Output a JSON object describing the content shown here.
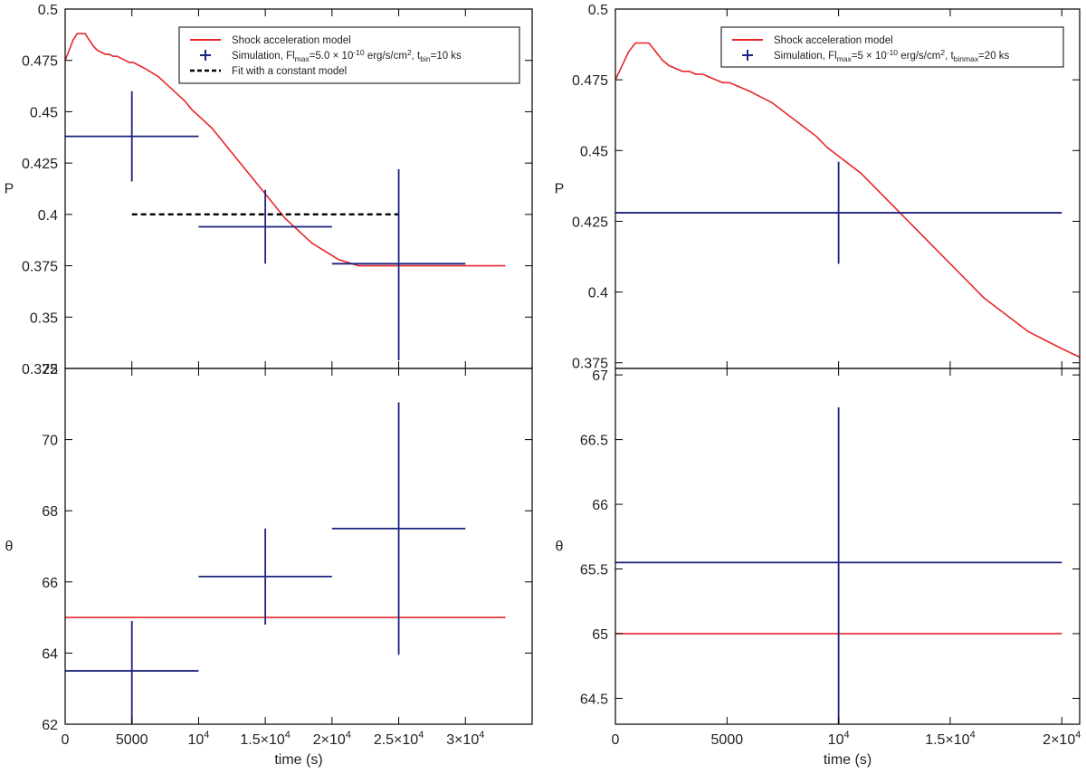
{
  "chart_data": [
    {
      "panel": "left-top",
      "type": "line",
      "xlabel": "",
      "ylabel": "P",
      "xlim": [
        0,
        35000
      ],
      "ylim": [
        0.325,
        0.5
      ],
      "x_ticks": [
        {
          "v": 0,
          "b": "0"
        },
        {
          "v": 5000,
          "b": "5000"
        },
        {
          "v": 10000,
          "b": "10",
          "e": "4"
        },
        {
          "v": 15000,
          "b": "1.5×10",
          "e": "4"
        },
        {
          "v": 20000,
          "b": "2×10",
          "e": "4"
        },
        {
          "v": 25000,
          "b": "2.5×10",
          "e": "4"
        },
        {
          "v": 30000,
          "b": "3×10",
          "e": "4"
        }
      ],
      "y_ticks": [
        {
          "v": 0.325,
          "b": "0.325"
        },
        {
          "v": 0.35,
          "b": "0.35"
        },
        {
          "v": 0.375,
          "b": "0.375"
        },
        {
          "v": 0.4,
          "b": "0.4"
        },
        {
          "v": 0.425,
          "b": "0.425"
        },
        {
          "v": 0.45,
          "b": "0.45"
        },
        {
          "v": 0.475,
          "b": "0.475"
        },
        {
          "v": 0.5,
          "b": "0.5"
        }
      ],
      "series": [
        {
          "name": "Shock acceleration model",
          "kind": "line",
          "color": "#e8262a",
          "x": [
            0,
            300,
            600,
            900,
            1200,
            1500,
            1800,
            2100,
            2400,
            2700,
            3000,
            3300,
            3600,
            3900,
            4200,
            4500,
            4800,
            5100,
            5400,
            5700,
            6000,
            6500,
            7000,
            7500,
            8000,
            8500,
            9000,
            9500,
            10000,
            10500,
            11000,
            11500,
            12000,
            12500,
            13000,
            13500,
            14000,
            14500,
            15000,
            15500,
            16000,
            16500,
            17000,
            17500,
            18000,
            18500,
            19000,
            19500,
            20000,
            20500,
            21000,
            21500,
            22000,
            22500,
            23000,
            23500,
            24000,
            25000,
            27000,
            30000,
            33000
          ],
          "y": [
            0.475,
            0.48,
            0.485,
            0.488,
            0.488,
            0.488,
            0.485,
            0.482,
            0.48,
            0.479,
            0.478,
            0.478,
            0.477,
            0.477,
            0.476,
            0.475,
            0.474,
            0.474,
            0.473,
            0.472,
            0.471,
            0.469,
            0.467,
            0.464,
            0.461,
            0.458,
            0.455,
            0.451,
            0.448,
            0.445,
            0.442,
            0.438,
            0.434,
            0.43,
            0.426,
            0.422,
            0.418,
            0.414,
            0.41,
            0.406,
            0.402,
            0.398,
            0.395,
            0.392,
            0.389,
            0.386,
            0.384,
            0.382,
            0.38,
            0.378,
            0.377,
            0.376,
            0.375,
            0.375,
            0.375,
            0.375,
            0.375,
            0.375,
            0.375,
            0.375,
            0.375
          ]
        },
        {
          "name": "Fit with a constant model",
          "kind": "dashed",
          "color": "#000000",
          "x": [
            5000,
            25000
          ],
          "y": [
            0.4,
            0.4
          ]
        },
        {
          "name": "Simulation",
          "kind": "errorbar",
          "color": "#1a237e",
          "points": [
            {
              "x": 5000,
              "xerr": 5000,
              "y": 0.438,
              "ylo": 0.416,
              "yhi": 0.46
            },
            {
              "x": 15000,
              "xerr": 5000,
              "y": 0.394,
              "ylo": 0.376,
              "yhi": 0.412
            },
            {
              "x": 25000,
              "xerr": 5000,
              "y": 0.376,
              "ylo": 0.329,
              "yhi": 0.422
            }
          ]
        }
      ],
      "legend": {
        "placement": "top-right",
        "entries": [
          {
            "kind": "line",
            "color": "#e8262a",
            "parts": [
              {
                "t": "Shock acceleration model"
              }
            ]
          },
          {
            "kind": "cross",
            "color": "#1a237e",
            "parts": [
              {
                "t": "Simulation, Fl"
              },
              {
                "t": "max",
                "s": "sub"
              },
              {
                "t": "=5.0 × 10"
              },
              {
                "t": "-10",
                "s": "sup"
              },
              {
                "t": " erg/s/cm"
              },
              {
                "t": "2",
                "s": "sup"
              },
              {
                "t": ", t"
              },
              {
                "t": "bin",
                "s": "sub"
              },
              {
                "t": "=10 ks"
              }
            ]
          },
          {
            "kind": "dashed",
            "color": "#000000",
            "parts": [
              {
                "t": "Fit with a constant model"
              }
            ]
          }
        ]
      }
    },
    {
      "panel": "left-bottom",
      "type": "line",
      "xlabel": "time (s)",
      "ylabel": "θ",
      "xlim": [
        0,
        35000
      ],
      "ylim": [
        62,
        72
      ],
      "x_ticks": [
        {
          "v": 0,
          "b": "0"
        },
        {
          "v": 5000,
          "b": "5000"
        },
        {
          "v": 10000,
          "b": "10",
          "e": "4"
        },
        {
          "v": 15000,
          "b": "1.5×10",
          "e": "4"
        },
        {
          "v": 20000,
          "b": "2×10",
          "e": "4"
        },
        {
          "v": 25000,
          "b": "2.5×10",
          "e": "4"
        },
        {
          "v": 30000,
          "b": "3×10",
          "e": "4"
        }
      ],
      "y_ticks": [
        {
          "v": 62,
          "b": "62"
        },
        {
          "v": 64,
          "b": "64"
        },
        {
          "v": 66,
          "b": "66"
        },
        {
          "v": 68,
          "b": "68"
        },
        {
          "v": 70,
          "b": "70"
        },
        {
          "v": 72,
          "b": "72"
        }
      ],
      "series": [
        {
          "name": "Shock acceleration model",
          "kind": "line",
          "color": "#e8262a",
          "x": [
            0,
            33000
          ],
          "y": [
            65,
            65
          ]
        },
        {
          "name": "Simulation",
          "kind": "errorbar",
          "color": "#1a237e",
          "points": [
            {
              "x": 5000,
              "xerr": 5000,
              "y": 63.5,
              "ylo": 62.0,
              "yhi": 64.9
            },
            {
              "x": 15000,
              "xerr": 5000,
              "y": 66.15,
              "ylo": 64.8,
              "yhi": 67.5
            },
            {
              "x": 25000,
              "xerr": 5000,
              "y": 67.5,
              "ylo": 63.95,
              "yhi": 71.05
            }
          ]
        }
      ]
    },
    {
      "panel": "right-top",
      "type": "line",
      "xlabel": "",
      "ylabel": "P",
      "xlim": [
        0,
        20800
      ],
      "ylim": [
        0.373,
        0.5
      ],
      "x_ticks": [
        {
          "v": 0,
          "b": "0"
        },
        {
          "v": 5000,
          "b": "5000"
        },
        {
          "v": 10000,
          "b": "10",
          "e": "4"
        },
        {
          "v": 15000,
          "b": "1.5×10",
          "e": "4"
        },
        {
          "v": 20000,
          "b": "2×10",
          "e": "4"
        }
      ],
      "y_ticks": [
        {
          "v": 0.375,
          "b": "0.375"
        },
        {
          "v": 0.4,
          "b": "0.4"
        },
        {
          "v": 0.425,
          "b": "0.425"
        },
        {
          "v": 0.45,
          "b": "0.45"
        },
        {
          "v": 0.475,
          "b": "0.475"
        },
        {
          "v": 0.5,
          "b": "0.5"
        }
      ],
      "series": [
        {
          "name": "Shock acceleration model",
          "kind": "line",
          "color": "#e8262a",
          "x": [
            0,
            300,
            600,
            900,
            1200,
            1500,
            1800,
            2100,
            2400,
            2700,
            3000,
            3300,
            3600,
            3900,
            4200,
            4500,
            4800,
            5100,
            5400,
            5700,
            6000,
            6500,
            7000,
            7500,
            8000,
            8500,
            9000,
            9500,
            10000,
            10500,
            11000,
            11500,
            12000,
            12500,
            13000,
            13500,
            14000,
            14500,
            15000,
            15500,
            16000,
            16500,
            17000,
            17500,
            18000,
            18500,
            19000,
            19500,
            20000,
            20800
          ],
          "y": [
            0.475,
            0.48,
            0.485,
            0.488,
            0.488,
            0.488,
            0.485,
            0.482,
            0.48,
            0.479,
            0.478,
            0.478,
            0.477,
            0.477,
            0.476,
            0.475,
            0.474,
            0.474,
            0.473,
            0.472,
            0.471,
            0.469,
            0.467,
            0.464,
            0.461,
            0.458,
            0.455,
            0.451,
            0.448,
            0.445,
            0.442,
            0.438,
            0.434,
            0.43,
            0.426,
            0.422,
            0.418,
            0.414,
            0.41,
            0.406,
            0.402,
            0.398,
            0.395,
            0.392,
            0.389,
            0.386,
            0.384,
            0.382,
            0.38,
            0.377
          ]
        },
        {
          "name": "Simulation",
          "kind": "errorbar",
          "color": "#1a237e",
          "points": [
            {
              "x": 10000,
              "xerr": 10000,
              "y": 0.428,
              "ylo": 0.41,
              "yhi": 0.446
            }
          ]
        }
      ],
      "legend": {
        "placement": "top-right",
        "entries": [
          {
            "kind": "line",
            "color": "#e8262a",
            "parts": [
              {
                "t": "Shock acceleration model"
              }
            ]
          },
          {
            "kind": "cross",
            "color": "#1a237e",
            "parts": [
              {
                "t": "Simulation, Fl"
              },
              {
                "t": "max",
                "s": "sub"
              },
              {
                "t": "=5 × 10"
              },
              {
                "t": "-10",
                "s": "sup"
              },
              {
                "t": " erg/s/cm"
              },
              {
                "t": "2",
                "s": "sup"
              },
              {
                "t": ", t"
              },
              {
                "t": "binmax",
                "s": "sub"
              },
              {
                "t": "=20 ks"
              }
            ]
          }
        ]
      }
    },
    {
      "panel": "right-bottom",
      "type": "line",
      "xlabel": "time (s)",
      "ylabel": "θ",
      "xlim": [
        0,
        20800
      ],
      "ylim": [
        64.3,
        67.05
      ],
      "x_ticks": [
        {
          "v": 0,
          "b": "0"
        },
        {
          "v": 5000,
          "b": "5000"
        },
        {
          "v": 10000,
          "b": "10",
          "e": "4"
        },
        {
          "v": 15000,
          "b": "1.5×10",
          "e": "4"
        },
        {
          "v": 20000,
          "b": "2×10",
          "e": "4"
        }
      ],
      "y_ticks": [
        {
          "v": 64.5,
          "b": "64.5"
        },
        {
          "v": 65,
          "b": "65"
        },
        {
          "v": 65.5,
          "b": "65.5"
        },
        {
          "v": 66,
          "b": "66"
        },
        {
          "v": 66.5,
          "b": "66.5"
        },
        {
          "v": 67,
          "b": "67"
        }
      ],
      "series": [
        {
          "name": "Shock acceleration model",
          "kind": "line",
          "color": "#e8262a",
          "x": [
            0,
            20000
          ],
          "y": [
            65,
            65
          ]
        },
        {
          "name": "Simulation",
          "kind": "errorbar",
          "color": "#1a237e",
          "points": [
            {
              "x": 10000,
              "xerr": 10000,
              "y": 65.55,
              "ylo": 64.3,
              "yhi": 66.75
            }
          ]
        }
      ]
    }
  ]
}
